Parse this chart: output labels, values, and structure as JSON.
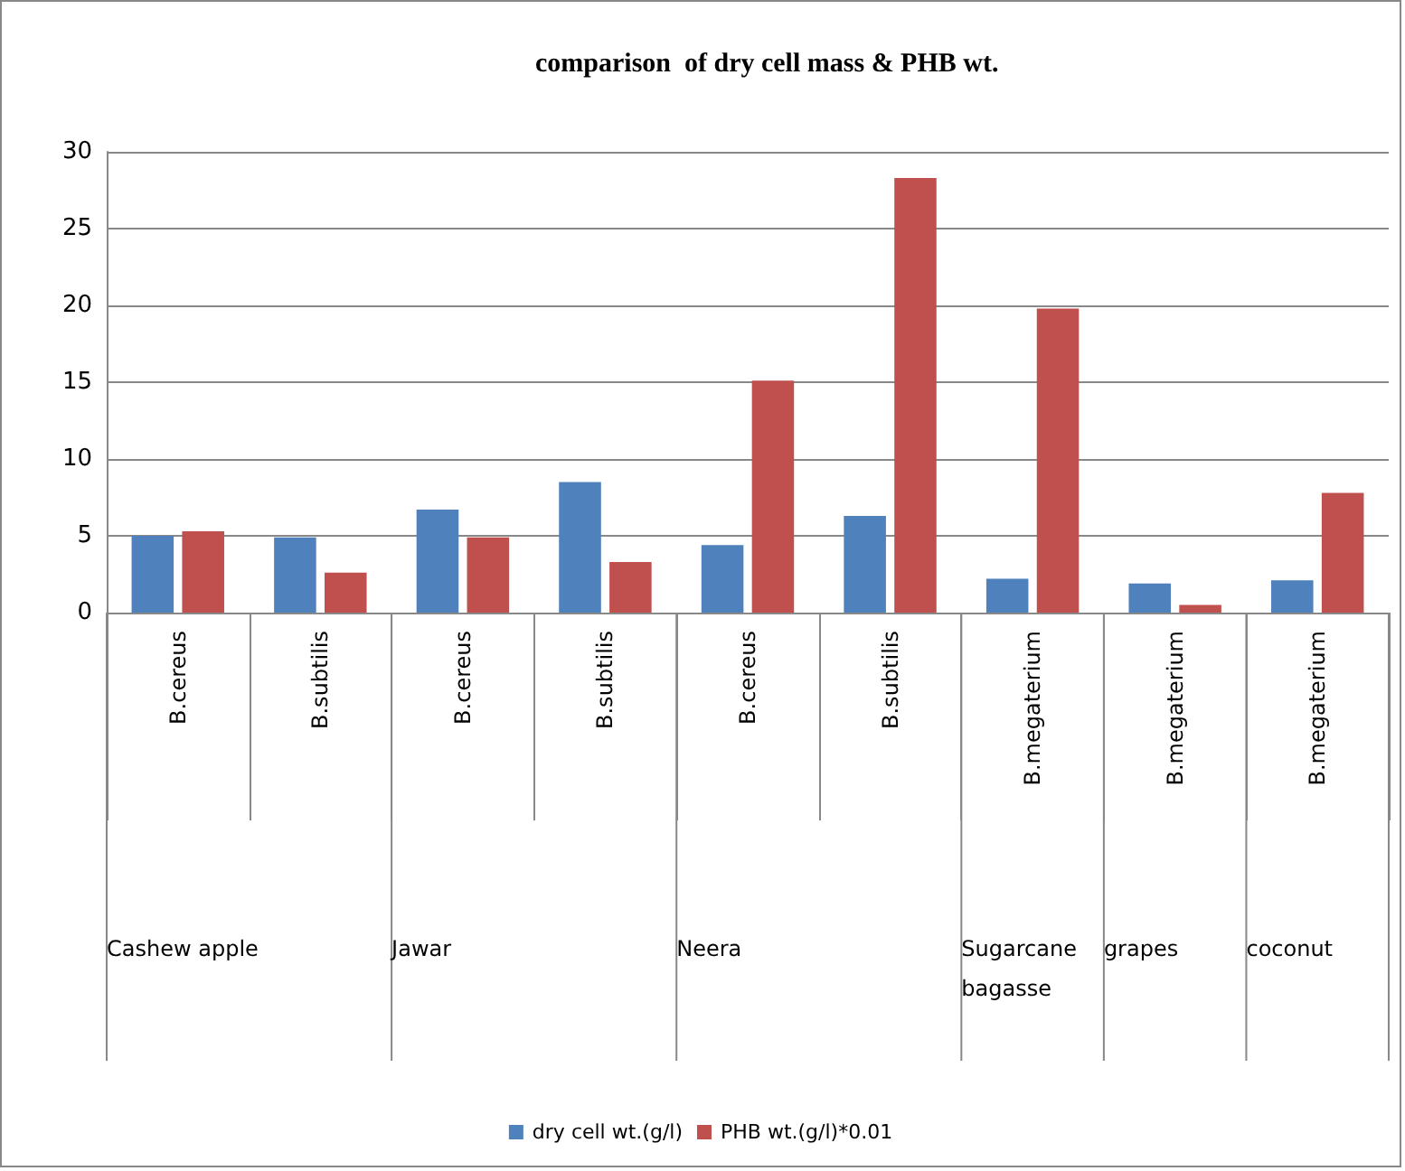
{
  "chart_data": {
    "type": "bar",
    "title": "comparison  of dry cell mass & PHB wt.",
    "categories": [
      "B.cereus",
      "B.subtilis",
      "B.cereus",
      "B.subtilis",
      "B.cereus",
      "B.subtilis",
      "B.megaterium",
      "B.megaterium",
      "B.megaterium"
    ],
    "series": [
      {
        "name": "dry cell wt.(g/l)",
        "color": "#4f81bd",
        "values": [
          5.0,
          4.9,
          6.7,
          8.5,
          4.4,
          6.3,
          2.2,
          1.9,
          2.1
        ]
      },
      {
        "name": "PHB wt.(g/l)*0.01",
        "color": "#c0504d",
        "values": [
          5.3,
          2.6,
          4.9,
          3.3,
          15.1,
          28.3,
          19.8,
          0.5,
          7.8
        ]
      }
    ],
    "annotations": [
      "Cashew apple",
      "Jawar",
      "Neera",
      "Sugarcane bagasse",
      "grapes",
      "coconut"
    ],
    "ylim": [
      0,
      30
    ],
    "yticks": [
      0,
      5,
      10,
      15,
      20,
      25,
      30
    ],
    "grid": "y",
    "legend": "bottom"
  }
}
